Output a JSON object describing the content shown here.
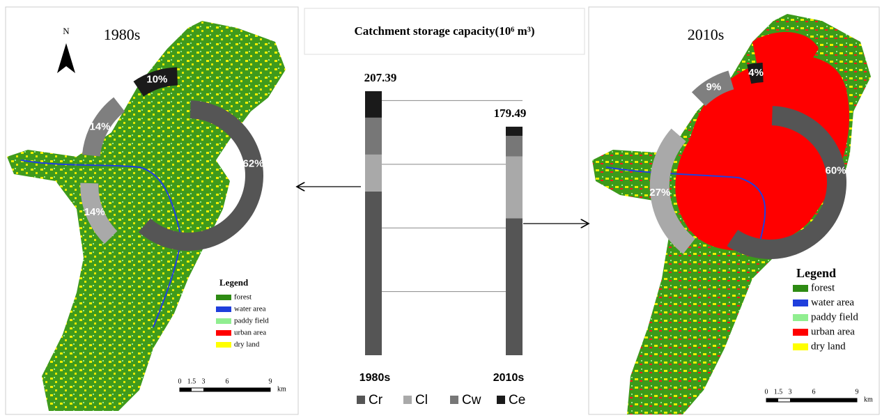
{
  "chart_data": [
    {
      "type": "bar",
      "stacked": true,
      "title": "Catchment storage capacity(10⁶ m³)",
      "categories": [
        "1980s",
        "2010s"
      ],
      "series": [
        {
          "name": "Cr",
          "color": "#555555",
          "values": [
            128.6,
            107.6
          ]
        },
        {
          "name": "Cl",
          "color": "#a9a9a9",
          "values": [
            29.0,
            48.5
          ]
        },
        {
          "name": "Cw",
          "color": "#777777",
          "values": [
            29.0,
            16.2
          ]
        },
        {
          "name": "Ce",
          "color": "#1a1a1a",
          "values": [
            20.8,
            7.2
          ]
        }
      ],
      "totals": [
        207.39,
        179.49
      ],
      "ylim": [
        0,
        215
      ],
      "grid_lines": [
        50,
        100,
        150,
        200
      ]
    },
    {
      "type": "pie",
      "donut": true,
      "values": [
        62,
        14,
        14,
        10
      ],
      "value_labels": [
        "62%",
        "14%",
        "14%",
        "10%"
      ],
      "colors": [
        "#555555",
        "#a9a9a9",
        "#7f7f7f",
        "#1a1a1a"
      ]
    },
    {
      "type": "pie",
      "donut": true,
      "values": [
        60,
        27,
        9,
        4
      ],
      "value_labels": [
        "60%",
        "27%",
        "9%",
        "4%"
      ],
      "colors": [
        "#555555",
        "#a9a9a9",
        "#7f7f7f",
        "#1a1a1a"
      ]
    }
  ],
  "maps": [
    {
      "title": "1980s",
      "north": "N",
      "legend_title": "Legend",
      "legend": [
        {
          "label": "forest",
          "color": "#2e8b13"
        },
        {
          "label": "water area",
          "color": "#1f3fdc"
        },
        {
          "label": "paddy field",
          "color": "#90ee90"
        },
        {
          "label": "urban area",
          "color": "#ff0000"
        },
        {
          "label": "dry land",
          "color": "#ffff00"
        }
      ],
      "scale_labels": [
        "0",
        "1.5",
        "3",
        "6",
        "9",
        "km"
      ]
    },
    {
      "title": "2010s",
      "legend_title": "Legend",
      "legend": [
        {
          "label": "forest",
          "color": "#2e8b13"
        },
        {
          "label": "water area",
          "color": "#1f3fdc"
        },
        {
          "label": "paddy field",
          "color": "#90ee90"
        },
        {
          "label": "urban area",
          "color": "#ff0000"
        },
        {
          "label": "dry land",
          "color": "#ffff00"
        }
      ],
      "scale_labels": [
        "0",
        "1.5",
        "3",
        "6",
        "9",
        "km"
      ]
    }
  ]
}
